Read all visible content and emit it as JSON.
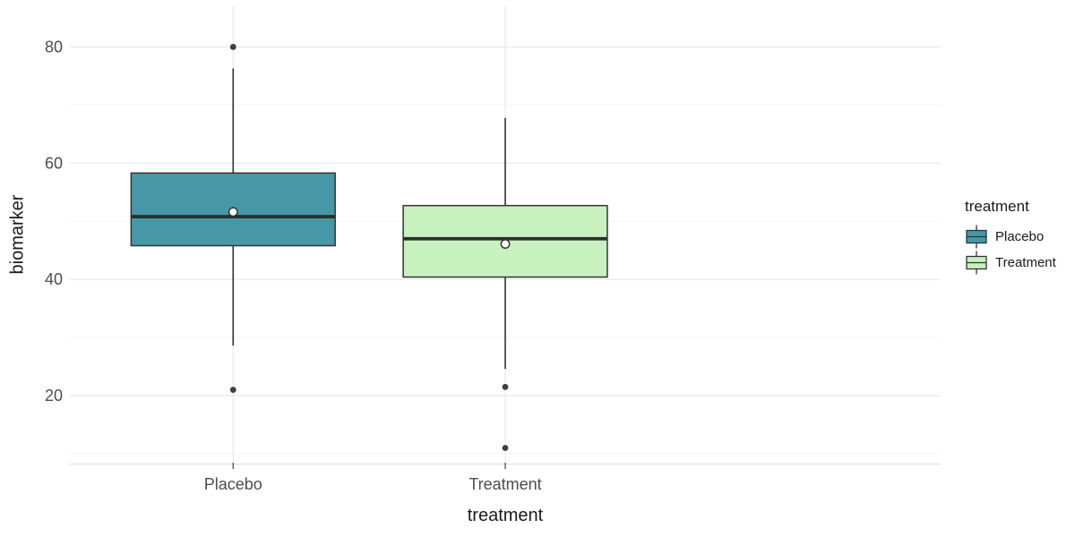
{
  "chart_data": {
    "type": "boxplot",
    "title": "",
    "xlabel": "treatment",
    "ylabel": "biomarker",
    "categories": [
      "Placebo",
      "Treatment"
    ],
    "series": [
      {
        "name": "Placebo",
        "fill": "#4698a7",
        "whisker_low": 28.6,
        "q1": 45.8,
        "median": 50.8,
        "q3": 58.3,
        "whisker_high": 76.3,
        "mean": 51.6,
        "outliers": [
          80,
          21
        ]
      },
      {
        "name": "Treatment",
        "fill": "#c7f1be",
        "whisker_low": 24.6,
        "q1": 40.4,
        "median": 47,
        "q3": 52.7,
        "whisker_high": 67.8,
        "mean": 46.1,
        "outliers": [
          21.5,
          11
        ]
      }
    ],
    "y_ticks": [
      20,
      40,
      60,
      80
    ],
    "y_minor_gridlines": [
      10,
      30,
      50,
      70
    ],
    "ylim": [
      8.3,
      87
    ],
    "grid": true,
    "legend_position": "right",
    "mean_marker": "open-circle",
    "legend": {
      "title": "treatment",
      "items": [
        {
          "label": "Placebo",
          "fill": "#4698a7"
        },
        {
          "label": "Treatment",
          "fill": "#c7f1be"
        }
      ]
    },
    "colors": {
      "background": "#ffffff",
      "box_border": "#333333",
      "whisker": "#333333",
      "median_line": "#2e2e2e",
      "outlier_point": "#404040",
      "mean_fill": "#ffffff",
      "mean_stroke": "#333333",
      "grid_major": "#e8e8e8",
      "grid_minor": "#f3f3f3",
      "axis_line": "#dedede",
      "tick_mark": "#5a5a5a",
      "tick_label": "#4d4d4d",
      "axis_title": "#1a1a1a",
      "legend_text": "#1a1a1a"
    }
  }
}
